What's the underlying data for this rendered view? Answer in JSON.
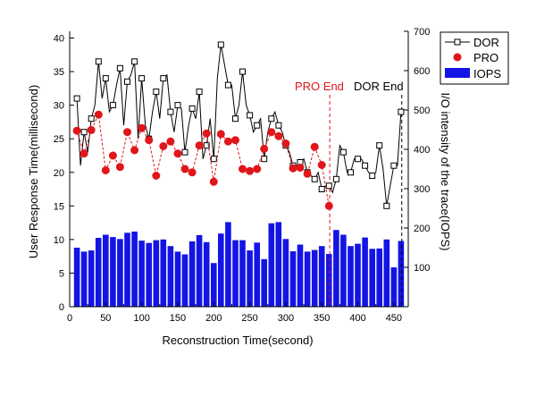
{
  "chart_data": {
    "type": "bar+line",
    "xlabel": "Reconstruction Time(second)",
    "ylabel_left": "User Response Time(millisecond)",
    "ylabel_right": "I/O intensity of the trace(IOPS)",
    "xlim": [
      0,
      470
    ],
    "ylim_left": [
      0,
      41
    ],
    "ylim_right": [
      0,
      700
    ],
    "x_ticks": [
      0,
      50,
      100,
      150,
      200,
      250,
      300,
      350,
      400,
      450
    ],
    "y_left_ticks": [
      0,
      5,
      10,
      15,
      20,
      25,
      30,
      35,
      40
    ],
    "y_right_ticks": [
      100,
      200,
      300,
      400,
      500,
      600,
      700
    ],
    "grid": false,
    "legend_position": "top-right",
    "legend": [
      {
        "key": "dor",
        "label": "DOR"
      },
      {
        "key": "pro",
        "label": "PRO"
      },
      {
        "key": "iops",
        "label": "IOPS"
      }
    ],
    "annotations": [
      {
        "text": "PRO End",
        "x": 361,
        "color": "#e0161b"
      },
      {
        "text": "DOR End",
        "x": 461,
        "color": "#000000"
      }
    ],
    "series": [
      {
        "key": "iops",
        "type": "bar",
        "axis": "right",
        "color": "#1414e6",
        "x": [
          10,
          20,
          30,
          40,
          50,
          60,
          70,
          80,
          90,
          100,
          110,
          120,
          130,
          140,
          150,
          160,
          170,
          180,
          190,
          200,
          210,
          220,
          230,
          240,
          250,
          260,
          270,
          280,
          290,
          300,
          310,
          320,
          330,
          340,
          350,
          360,
          370,
          380,
          390,
          400,
          410,
          420,
          430,
          440,
          450,
          460
        ],
        "values": [
          150,
          140,
          143,
          175,
          183,
          177,
          172,
          188,
          191,
          168,
          162,
          169,
          171,
          154,
          140,
          133,
          166,
          182,
          164,
          111,
          186,
          215,
          169,
          169,
          143,
          163,
          121,
          212,
          215,
          172,
          141,
          158,
          140,
          144,
          154,
          134,
          195,
          183,
          154,
          160,
          176,
          147,
          148,
          171,
          100,
          167
        ]
      },
      {
        "key": "dor",
        "type": "line",
        "axis": "left",
        "color": "#000000",
        "x": [
          10,
          15,
          20,
          25,
          30,
          35,
          40,
          45,
          50,
          55,
          60,
          65,
          70,
          75,
          80,
          85,
          90,
          95,
          100,
          105,
          110,
          115,
          120,
          125,
          130,
          135,
          140,
          145,
          150,
          155,
          160,
          165,
          170,
          175,
          180,
          185,
          190,
          195,
          200,
          205,
          210,
          215,
          220,
          225,
          230,
          235,
          240,
          245,
          250,
          255,
          260,
          265,
          270,
          275,
          280,
          285,
          290,
          295,
          300,
          305,
          310,
          315,
          320,
          325,
          330,
          335,
          340,
          345,
          350,
          355,
          360,
          365,
          370,
          375,
          380,
          385,
          390,
          395,
          400,
          405,
          410,
          415,
          420,
          425,
          430,
          435,
          440,
          445,
          450,
          455,
          460
        ],
        "values": [
          31,
          21,
          26,
          23,
          28,
          30,
          36.5,
          31,
          34,
          29,
          30,
          33,
          35.5,
          27,
          33.5,
          34.5,
          36.5,
          25,
          34,
          27,
          25,
          29,
          32,
          28,
          34,
          34.5,
          29,
          26,
          30,
          29.5,
          23,
          27,
          29.5,
          28,
          32,
          22,
          24,
          28,
          22,
          34,
          39,
          36,
          33,
          33,
          28,
          30,
          35,
          30,
          28.5,
          26,
          27,
          28,
          22,
          26,
          28,
          29,
          27,
          26,
          24,
          23,
          21,
          21,
          21.5,
          22,
          20,
          19.5,
          19,
          20,
          17.5,
          18,
          18,
          17,
          19,
          24,
          23,
          20,
          20,
          22,
          22,
          22,
          21,
          20,
          19.5,
          20,
          24,
          20.5,
          15,
          18,
          21,
          21,
          29
        ]
      },
      {
        "key": "pro",
        "type": "line",
        "axis": "left",
        "color": "#e0161b",
        "x": [
          10,
          20,
          30,
          40,
          50,
          60,
          70,
          80,
          90,
          100,
          110,
          120,
          130,
          140,
          150,
          160,
          170,
          180,
          190,
          200,
          210,
          220,
          230,
          240,
          250,
          260,
          270,
          280,
          290,
          300,
          310,
          320,
          330,
          340,
          350,
          360
        ],
        "values": [
          26.2,
          22.8,
          26.3,
          28.6,
          20.3,
          22.5,
          20.8,
          26,
          23.3,
          26.6,
          24.8,
          19.5,
          23.9,
          24.6,
          22.8,
          20.5,
          20,
          24,
          25.8,
          18.6,
          25.7,
          24.6,
          24.8,
          20.5,
          20.2,
          20.5,
          23.5,
          26,
          25.4,
          24.3,
          20.6,
          20.7,
          19.8,
          23.8,
          21.1,
          15
        ]
      }
    ]
  }
}
